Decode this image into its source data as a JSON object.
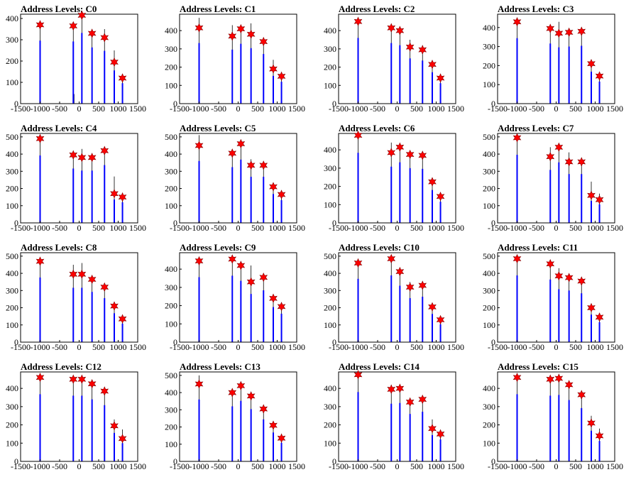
{
  "chart_data": [
    {
      "type": "bar",
      "title": "Address Levels: C0",
      "xlim": [
        -1500,
        1500
      ],
      "ylim": [
        0,
        420
      ],
      "xticks": [
        "-1500",
        "-1000",
        "-500",
        "0",
        "500",
        "1000",
        "1500"
      ],
      "yticks": [
        "0",
        "100",
        "200",
        "300",
        "400"
      ],
      "x": [
        -1000,
        -150,
        70,
        330,
        650,
        900,
        1110
      ],
      "values": [
        370,
        365,
        415,
        330,
        310,
        195,
        120
      ],
      "raw_x": [
        -1000,
        -150,
        -130,
        70,
        330,
        650,
        900,
        1110
      ],
      "raw_values": [
        370,
        360,
        45,
        420,
        330,
        350,
        250,
        125
      ]
    },
    {
      "type": "bar",
      "title": "Address Levels: C1",
      "xlim": [
        -1500,
        1500
      ],
      "ylim": [
        0,
        490
      ],
      "xticks": [
        "-1500",
        "-1000",
        "-500",
        "0",
        "500",
        "1000",
        "1500"
      ],
      "yticks": [
        "0",
        "100",
        "200",
        "300",
        "400"
      ],
      "x": [
        -1000,
        -150,
        70,
        330,
        650,
        900,
        1110
      ],
      "values": [
        415,
        370,
        410,
        380,
        340,
        190,
        150
      ],
      "raw_x": [
        -1000,
        -150,
        70,
        330,
        650,
        900,
        1110
      ],
      "raw_values": [
        470,
        430,
        420,
        440,
        330,
        240,
        145
      ]
    },
    {
      "type": "bar",
      "title": "Address Levels: C2",
      "xlim": [
        -1500,
        1500
      ],
      "ylim": [
        0,
        490
      ],
      "xticks": [
        "-1500",
        "-1000",
        "-500",
        "0",
        "500",
        "1000",
        "1500"
      ],
      "yticks": [
        "0",
        "100",
        "200",
        "300",
        "400"
      ],
      "x": [
        -1000,
        -150,
        70,
        330,
        650,
        900,
        1110
      ],
      "values": [
        450,
        415,
        400,
        310,
        295,
        215,
        140
      ],
      "raw_x": [
        -1000,
        -150,
        70,
        330,
        650,
        900,
        1110
      ],
      "raw_values": [
        460,
        410,
        390,
        350,
        320,
        230,
        130
      ]
    },
    {
      "type": "bar",
      "title": "Address Levels: C3",
      "xlim": [
        -1500,
        1500
      ],
      "ylim": [
        0,
        470
      ],
      "xticks": [
        "-1500",
        "-1000",
        "-500",
        "0",
        "500",
        "1000",
        "1500"
      ],
      "yticks": [
        "0",
        "100",
        "200",
        "300",
        "400"
      ],
      "x": [
        -1000,
        -150,
        70,
        330,
        650,
        900,
        1110
      ],
      "values": [
        430,
        395,
        370,
        375,
        380,
        210,
        145
      ],
      "raw_x": [
        -1000,
        -150,
        70,
        330,
        650,
        900,
        1110
      ],
      "raw_values": [
        440,
        380,
        430,
        380,
        370,
        200,
        130
      ]
    },
    {
      "type": "bar",
      "title": "Address Levels: C4",
      "xlim": [
        -1500,
        1500
      ],
      "ylim": [
        0,
        520
      ],
      "xticks": [
        "-1500",
        "-1000",
        "-500",
        "0",
        "500",
        "1000",
        "1500"
      ],
      "yticks": [
        "0",
        "100",
        "200",
        "300",
        "400",
        "500"
      ],
      "x": [
        -1000,
        -150,
        70,
        330,
        650,
        900,
        1110
      ],
      "values": [
        490,
        395,
        380,
        380,
        420,
        170,
        150
      ],
      "raw_x": [
        -1000,
        -150,
        70,
        330,
        650,
        900,
        1110
      ],
      "raw_values": [
        500,
        400,
        430,
        390,
        430,
        270,
        150
      ]
    },
    {
      "type": "bar",
      "title": "Address Levels: C5",
      "xlim": [
        -1500,
        1500
      ],
      "ylim": [
        0,
        520
      ],
      "xticks": [
        "-1500",
        "-1000",
        "-500",
        "0",
        "500",
        "1000",
        "1500"
      ],
      "yticks": [
        "0",
        "100",
        "200",
        "300",
        "400",
        "500"
      ],
      "x": [
        -1000,
        -150,
        70,
        330,
        650,
        900,
        1110
      ],
      "values": [
        450,
        405,
        460,
        335,
        335,
        210,
        165
      ],
      "raw_x": [
        -1000,
        -150,
        70,
        330,
        650,
        900,
        1110
      ],
      "raw_values": [
        510,
        420,
        450,
        370,
        340,
        220,
        170
      ]
    },
    {
      "type": "bar",
      "title": "Address Levels: C6",
      "xlim": [
        -1500,
        1500
      ],
      "ylim": [
        0,
        490
      ],
      "xticks": [
        "-1500",
        "-1000",
        "-500",
        "0",
        "500",
        "1000",
        "1500"
      ],
      "yticks": [
        "0",
        "100",
        "200",
        "300",
        "400"
      ],
      "x": [
        -1000,
        -150,
        70,
        330,
        650,
        900,
        1110
      ],
      "values": [
        480,
        385,
        415,
        375,
        370,
        225,
        145
      ],
      "raw_x": [
        -1000,
        -150,
        70,
        330,
        650,
        900,
        1110
      ],
      "raw_values": [
        480,
        440,
        420,
        380,
        370,
        240,
        150
      ]
    },
    {
      "type": "bar",
      "title": "Address Levels: C7",
      "xlim": [
        -1500,
        1500
      ],
      "ylim": [
        0,
        520
      ],
      "xticks": [
        "-1500",
        "-1000",
        "-500",
        "0",
        "500",
        "1000",
        "1500"
      ],
      "yticks": [
        "0",
        "100",
        "200",
        "300",
        "400",
        "500"
      ],
      "x": [
        -1000,
        -150,
        70,
        330,
        650,
        900,
        1110
      ],
      "values": [
        495,
        385,
        440,
        355,
        355,
        160,
        135
      ],
      "raw_x": [
        -1000,
        -150,
        70,
        330,
        650,
        900,
        1110
      ],
      "raw_values": [
        500,
        440,
        420,
        410,
        350,
        240,
        170
      ]
    },
    {
      "type": "bar",
      "title": "Address Levels: C8",
      "xlim": [
        -1500,
        1500
      ],
      "ylim": [
        0,
        520
      ],
      "xticks": [
        "-1500",
        "-1000",
        "-500",
        "0",
        "500",
        "1000",
        "1500"
      ],
      "yticks": [
        "0",
        "100",
        "200",
        "300",
        "400",
        "500"
      ],
      "x": [
        -1000,
        -150,
        70,
        330,
        650,
        900,
        1110
      ],
      "values": [
        470,
        395,
        395,
        365,
        320,
        210,
        135
      ],
      "raw_x": [
        -1000,
        -150,
        70,
        330,
        650,
        900,
        1110
      ],
      "raw_values": [
        480,
        450,
        460,
        360,
        340,
        220,
        145
      ]
    },
    {
      "type": "bar",
      "title": "Address Levels: C9",
      "xlim": [
        -1500,
        1500
      ],
      "ylim": [
        0,
        490
      ],
      "xticks": [
        "-1500",
        "-1000",
        "-500",
        "0",
        "500",
        "1000",
        "1500"
      ],
      "yticks": [
        "0",
        "100",
        "200",
        "300",
        "400"
      ],
      "x": [
        -1000,
        -150,
        70,
        330,
        650,
        900,
        1110
      ],
      "values": [
        445,
        455,
        420,
        330,
        355,
        240,
        195
      ],
      "raw_x": [
        -1000,
        -150,
        70,
        330,
        650,
        900,
        1110
      ],
      "raw_values": [
        450,
        460,
        420,
        420,
        350,
        240,
        195
      ]
    },
    {
      "type": "bar",
      "title": "Address Levels: C10",
      "xlim": [
        -1500,
        1500
      ],
      "ylim": [
        0,
        520
      ],
      "xticks": [
        "-1500",
        "-1000",
        "-500",
        "0",
        "500",
        "1000",
        "1500"
      ],
      "yticks": [
        "0",
        "100",
        "200",
        "300",
        "400",
        "500"
      ],
      "x": [
        -1000,
        -150,
        70,
        330,
        650,
        900,
        1110
      ],
      "values": [
        460,
        485,
        410,
        320,
        330,
        205,
        130
      ],
      "raw_x": [
        -1000,
        -150,
        70,
        330,
        650,
        900,
        1110
      ],
      "raw_values": [
        470,
        480,
        410,
        350,
        340,
        200,
        130
      ]
    },
    {
      "type": "bar",
      "title": "Address Levels: C11",
      "xlim": [
        -1500,
        1500
      ],
      "ylim": [
        0,
        520
      ],
      "xticks": [
        "-1500",
        "-1000",
        "-500",
        "0",
        "500",
        "1000",
        "1500"
      ],
      "yticks": [
        "0",
        "100",
        "200",
        "300",
        "400",
        "500"
      ],
      "x": [
        -1000,
        -150,
        70,
        330,
        650,
        900,
        1110
      ],
      "values": [
        485,
        455,
        385,
        375,
        355,
        200,
        145
      ],
      "raw_x": [
        -1000,
        -150,
        70,
        330,
        650,
        900,
        1110
      ],
      "raw_values": [
        480,
        460,
        430,
        380,
        370,
        210,
        150
      ]
    },
    {
      "type": "bar",
      "title": "Address Levels: C12",
      "xlim": [
        -1500,
        1500
      ],
      "ylim": [
        0,
        490
      ],
      "xticks": [
        "-1500",
        "-1000",
        "-500",
        "0",
        "500",
        "1000",
        "1500"
      ],
      "yticks": [
        "0",
        "100",
        "200",
        "300",
        "400"
      ],
      "x": [
        -1000,
        -150,
        70,
        330,
        650,
        900,
        1110
      ],
      "values": [
        460,
        450,
        450,
        425,
        385,
        195,
        125
      ],
      "raw_x": [
        -1000,
        -150,
        70,
        330,
        650,
        900,
        1110
      ],
      "raw_values": [
        470,
        450,
        460,
        430,
        380,
        230,
        175
      ]
    },
    {
      "type": "bar",
      "title": "Address Levels: C13",
      "xlim": [
        -1500,
        1500
      ],
      "ylim": [
        0,
        520
      ],
      "xticks": [
        "-1500",
        "-1000",
        "-500",
        "0",
        "500",
        "1000",
        "1500"
      ],
      "yticks": [
        "0",
        "100",
        "200",
        "300",
        "400",
        "500"
      ],
      "x": [
        -1000,
        -150,
        70,
        330,
        650,
        900,
        1110
      ],
      "values": [
        450,
        400,
        440,
        380,
        305,
        210,
        135
      ],
      "raw_x": [
        -1000,
        -150,
        70,
        330,
        650,
        900,
        1110
      ],
      "raw_values": [
        500,
        410,
        460,
        380,
        310,
        210,
        140
      ]
    },
    {
      "type": "bar",
      "title": "Address Levels: C14",
      "xlim": [
        -1500,
        1500
      ],
      "ylim": [
        0,
        490
      ],
      "xticks": [
        "-1500",
        "-1000",
        "-500",
        "0",
        "500",
        "1000",
        "1500"
      ],
      "yticks": [
        "0",
        "100",
        "200",
        "300",
        "400"
      ],
      "x": [
        -1000,
        -150,
        70,
        330,
        650,
        900,
        1110
      ],
      "values": [
        475,
        395,
        400,
        325,
        340,
        180,
        150
      ],
      "raw_x": [
        -1000,
        -150,
        70,
        330,
        650,
        900,
        1110
      ],
      "raw_values": [
        480,
        420,
        410,
        340,
        340,
        230,
        150
      ]
    },
    {
      "type": "bar",
      "title": "Address Levels: C15",
      "xlim": [
        -1500,
        1500
      ],
      "ylim": [
        0,
        490
      ],
      "xticks": [
        "-1500",
        "-1000",
        "-500",
        "0",
        "500",
        "1000",
        "1500"
      ],
      "yticks": [
        "0",
        "100",
        "200",
        "300",
        "400"
      ],
      "x": [
        -1000,
        -150,
        70,
        330,
        650,
        900,
        1110
      ],
      "values": [
        460,
        450,
        455,
        420,
        365,
        210,
        140
      ],
      "raw_x": [
        -1000,
        -150,
        70,
        330,
        650,
        900,
        1110
      ],
      "raw_values": [
        460,
        450,
        470,
        420,
        380,
        250,
        180
      ]
    }
  ],
  "colors": {
    "bar": "#0000ff",
    "spike": "#000000",
    "marker_fill": "#ff0000",
    "marker_stroke": "#800000",
    "axis": "#000000"
  }
}
